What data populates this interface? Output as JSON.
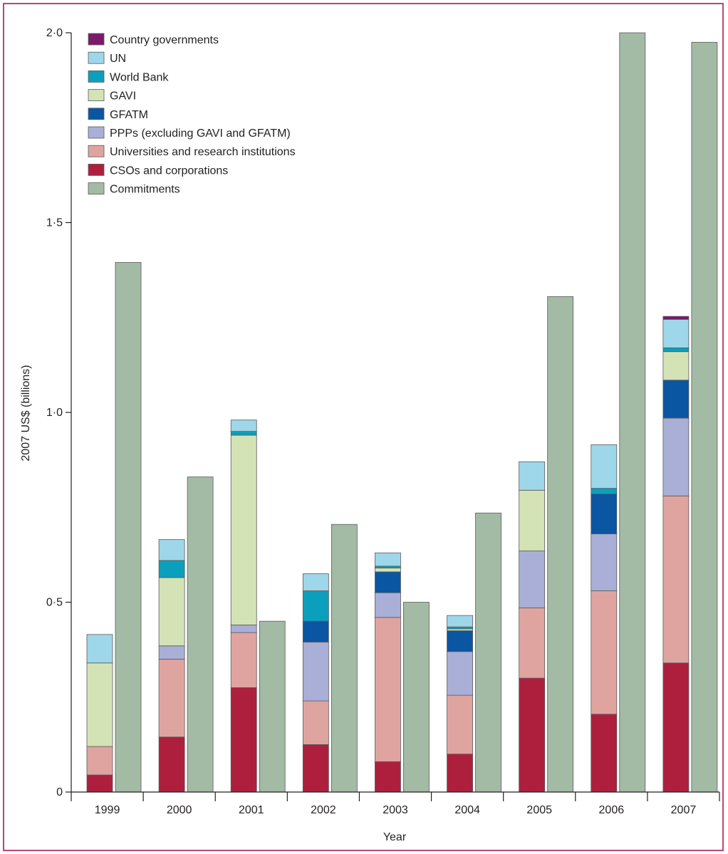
{
  "chart_data": {
    "type": "bar",
    "stacked": true,
    "xlabel": "Year",
    "ylabel": "2007 US$ (billions)",
    "ylim": [
      0,
      2.0
    ],
    "y_ticks": [
      "0",
      "0·5",
      "1·0",
      "1·5",
      "2·0"
    ],
    "y_tick_values": [
      0,
      0.5,
      1.0,
      1.5,
      2.0
    ],
    "categories": [
      "1999",
      "2000",
      "2001",
      "2002",
      "2003",
      "2004",
      "2005",
      "2006",
      "2007"
    ],
    "legend_position": "top-left",
    "series": [
      {
        "name": "CSOs and corporations",
        "color": "#ae1f3e",
        "values": [
          0.045,
          0.145,
          0.275,
          0.125,
          0.08,
          0.1,
          0.3,
          0.205,
          0.34
        ]
      },
      {
        "name": "Universities and research institutions",
        "color": "#dfa4a0",
        "values": [
          0.075,
          0.205,
          0.145,
          0.115,
          0.38,
          0.155,
          0.185,
          0.325,
          0.44
        ]
      },
      {
        "name": "PPPs (excluding GAVI and GFATM)",
        "color": "#a9afd6",
        "values": [
          0.0,
          0.035,
          0.02,
          0.155,
          0.065,
          0.115,
          0.15,
          0.15,
          0.205
        ]
      },
      {
        "name": "GFATM",
        "color": "#0a56a3",
        "values": [
          0.0,
          0.0,
          0.0,
          0.055,
          0.055,
          0.055,
          0.0,
          0.105,
          0.1
        ]
      },
      {
        "name": "GAVI",
        "color": "#d3e3b5",
        "values": [
          0.22,
          0.18,
          0.5,
          0.0,
          0.01,
          0.005,
          0.16,
          0.0,
          0.075
        ]
      },
      {
        "name": "World Bank",
        "color": "#0aa0bd",
        "values": [
          0.0,
          0.045,
          0.01,
          0.08,
          0.005,
          0.005,
          0.0,
          0.015,
          0.01
        ]
      },
      {
        "name": "UN",
        "color": "#9ed6ea",
        "values": [
          0.075,
          0.055,
          0.03,
          0.045,
          0.035,
          0.03,
          0.075,
          0.115,
          0.075
        ]
      },
      {
        "name": "Country governments",
        "color": "#7b1a6b",
        "values": [
          0.0,
          0.0,
          0.0,
          0.0,
          0.0,
          0.0,
          0.0,
          0.0,
          0.008
        ]
      }
    ],
    "commitments": {
      "name": "Commitments",
      "color": "#a3bba5",
      "values": [
        1.395,
        0.83,
        0.45,
        0.705,
        0.5,
        0.735,
        1.305,
        2.0,
        1.975
      ]
    },
    "legend_order": [
      {
        "name": "Country governments",
        "color": "#7b1a6b"
      },
      {
        "name": "UN",
        "color": "#9ed6ea"
      },
      {
        "name": "World Bank",
        "color": "#0aa0bd"
      },
      {
        "name": "GAVI",
        "color": "#d3e3b5"
      },
      {
        "name": "GFATM",
        "color": "#0a56a3"
      },
      {
        "name": "PPPs (excluding GAVI and GFATM)",
        "color": "#a9afd6"
      },
      {
        "name": "Universities and research institutions",
        "color": "#dfa4a0"
      },
      {
        "name": "CSOs and corporations",
        "color": "#ae1f3e"
      },
      {
        "name": "Commitments",
        "color": "#a3bba5"
      }
    ]
  }
}
